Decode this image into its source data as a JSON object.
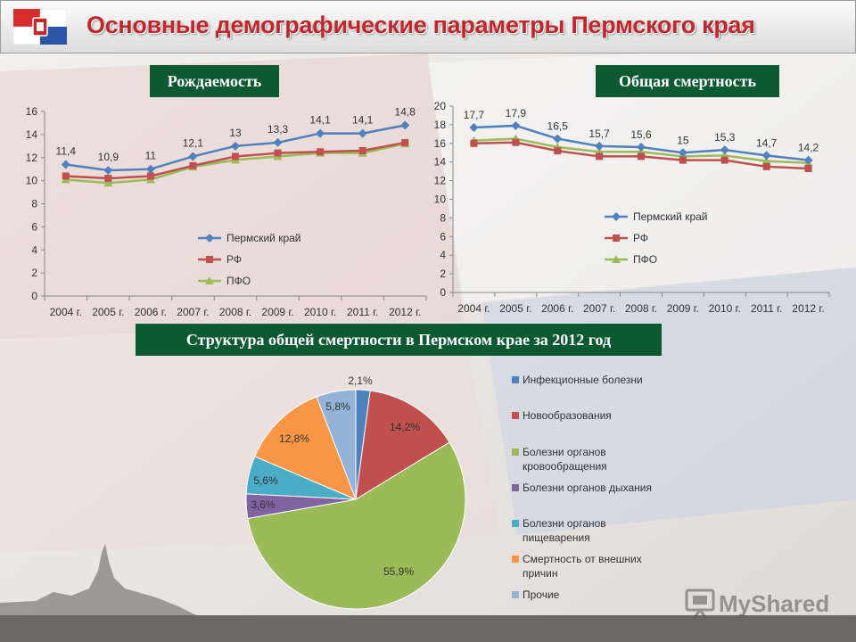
{
  "title": "Основные демографические параметры Пермского края",
  "labels": {
    "birth": "Рождаемость",
    "mortality": "Общая смертность",
    "structure": "Структура общей смертности в Пермском крае за 2012 год"
  },
  "watermark": "MyShared",
  "colors": {
    "perm": "#4f81bd",
    "rf": "#c0504d",
    "pfo": "#9bbb59",
    "accent_green": "#0d5a32",
    "title_red": "#c0272d"
  },
  "chart_data": [
    {
      "type": "line",
      "title": "Рождаемость",
      "categories": [
        "2004 г.",
        "2005 г.",
        "2006 г.",
        "2007 г.",
        "2008 г.",
        "2009 г.",
        "2010 г.",
        "2011 г.",
        "2012 г."
      ],
      "ylim": [
        0,
        16
      ],
      "yticks": [
        "0",
        "2",
        "4",
        "6",
        "8",
        "10",
        "12",
        "14",
        "16"
      ],
      "legend_position": "bottom-center",
      "series": [
        {
          "name": "Пермский край",
          "values": [
            11.4,
            10.9,
            11,
            12.1,
            13,
            13.3,
            14.1,
            14.1,
            14.8
          ],
          "labels": [
            "11,4",
            "10,9",
            "11",
            "12,1",
            "13",
            "13,3",
            "14,1",
            "14,1",
            "14,8"
          ]
        },
        {
          "name": "РФ",
          "values": [
            10.4,
            10.2,
            10.4,
            11.3,
            12.1,
            12.4,
            12.5,
            12.6,
            13.3
          ]
        },
        {
          "name": "ПФО",
          "values": [
            10.1,
            9.8,
            10.1,
            11.2,
            11.8,
            12.1,
            12.4,
            12.4,
            13.2
          ]
        }
      ]
    },
    {
      "type": "line",
      "title": "Общая смертность",
      "categories": [
        "2004 г.",
        "2005 г.",
        "2006 г.",
        "2007 г.",
        "2008 г.",
        "2009 г.",
        "2010 г.",
        "2011 г.",
        "2012 г."
      ],
      "ylim": [
        0,
        20
      ],
      "yticks": [
        "0",
        "2",
        "4",
        "6",
        "8",
        "10",
        "12",
        "14",
        "16",
        "18",
        "20"
      ],
      "legend_position": "middle-left",
      "series": [
        {
          "name": "Пермский край",
          "values": [
            17.7,
            17.9,
            16.5,
            15.7,
            15.6,
            15,
            15.3,
            14.7,
            14.2
          ],
          "labels": [
            "17,7",
            "17,9",
            "16,5",
            "15,7",
            "15,6",
            "15",
            "15,3",
            "14,7",
            "14,2"
          ]
        },
        {
          "name": "РФ",
          "values": [
            16,
            16.1,
            15.2,
            14.6,
            14.6,
            14.2,
            14.2,
            13.5,
            13.3
          ]
        },
        {
          "name": "ПФО",
          "values": [
            16.3,
            16.5,
            15.6,
            15.1,
            15.1,
            14.6,
            14.7,
            14.1,
            13.9
          ]
        }
      ]
    },
    {
      "type": "pie",
      "title": "Структура общей смертности в Пермском крае за 2012 год",
      "legend_position": "right",
      "slices": [
        {
          "name": "Инфекционные болезни",
          "value": 2.1,
          "label": "2,1%",
          "color": "#4f81bd"
        },
        {
          "name": "Новообразования",
          "value": 14.2,
          "label": "14,2%",
          "color": "#c0504d"
        },
        {
          "name": "Болезни органов кровообращения",
          "value": 55.9,
          "label": "55,9%",
          "color": "#9bbb59"
        },
        {
          "name": "Болезни органов дыхания",
          "value": 3.6,
          "label": "3,6%",
          "color": "#8064a2"
        },
        {
          "name": "Болезни органов пищеварения",
          "value": 5.6,
          "label": "5,6%",
          "color": "#4bacc6"
        },
        {
          "name": "Смертность от внешних причин",
          "value": 12.8,
          "label": "12,8%",
          "color": "#f79646"
        },
        {
          "name": "Прочие",
          "value": 5.8,
          "label": "5,8%",
          "color": "#95b3d7"
        }
      ]
    }
  ]
}
